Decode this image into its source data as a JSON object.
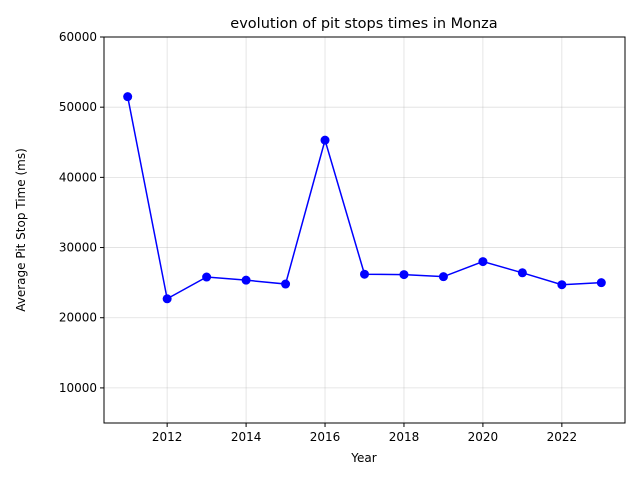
{
  "chart_data": {
    "type": "line",
    "title": "evolution of pit stops times in Monza",
    "xlabel": "Year",
    "ylabel": "Average Pit Stop Time (ms)",
    "xlim": [
      2010.4,
      2023.6
    ],
    "ylim": [
      5000,
      60000
    ],
    "xticks": [
      2012,
      2014,
      2016,
      2018,
      2020,
      2022
    ],
    "yticks": [
      10000,
      20000,
      30000,
      40000,
      50000,
      60000
    ],
    "grid": true,
    "series": [
      {
        "color": "#0000ff",
        "marker": "circle",
        "x": [
          2011,
          2012,
          2013,
          2014,
          2015,
          2016,
          2017,
          2018,
          2019,
          2020,
          2021,
          2022,
          2023
        ],
        "y": [
          51500,
          22700,
          25800,
          25350,
          24800,
          45300,
          26200,
          26150,
          25850,
          28000,
          26400,
          24700,
          25000
        ]
      }
    ]
  }
}
